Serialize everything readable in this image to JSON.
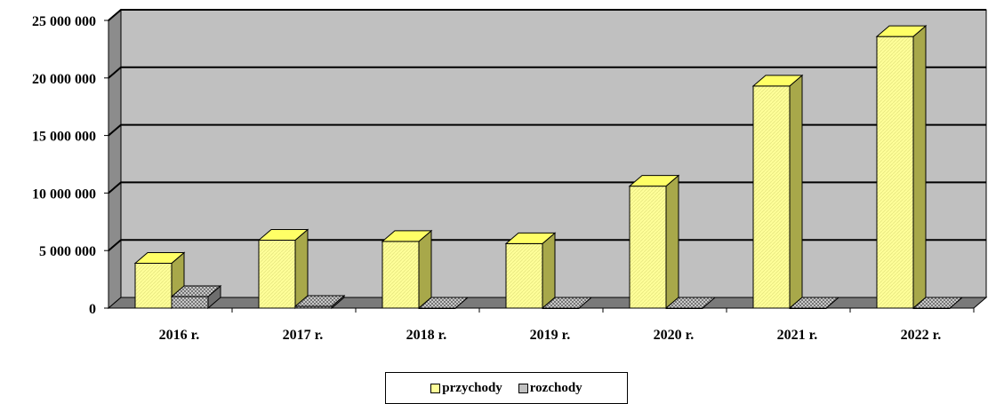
{
  "chart_data": {
    "type": "bar",
    "categories": [
      "2016 r.",
      "2017 r.",
      "2018 r.",
      "2019 r.",
      "2020 r.",
      "2021 r.",
      "2022 r."
    ],
    "series": [
      {
        "name": "przychody",
        "values": [
          3900000,
          5900000,
          5800000,
          5600000,
          10600000,
          19300000,
          23600000
        ],
        "color": "#ffff99"
      },
      {
        "name": "rozchody",
        "values": [
          1000000,
          150000,
          0,
          0,
          0,
          0,
          0
        ],
        "color": "#c0c0c0"
      }
    ],
    "yticks": [
      "0",
      "5 000 000",
      "10 000 000",
      "15 000 000",
      "20 000 000",
      "25 000 000"
    ],
    "ylim": [
      0,
      25000000
    ],
    "grid": true,
    "legend_position": "bottom",
    "three_d": true,
    "plot_background": "#c0c0c0"
  }
}
